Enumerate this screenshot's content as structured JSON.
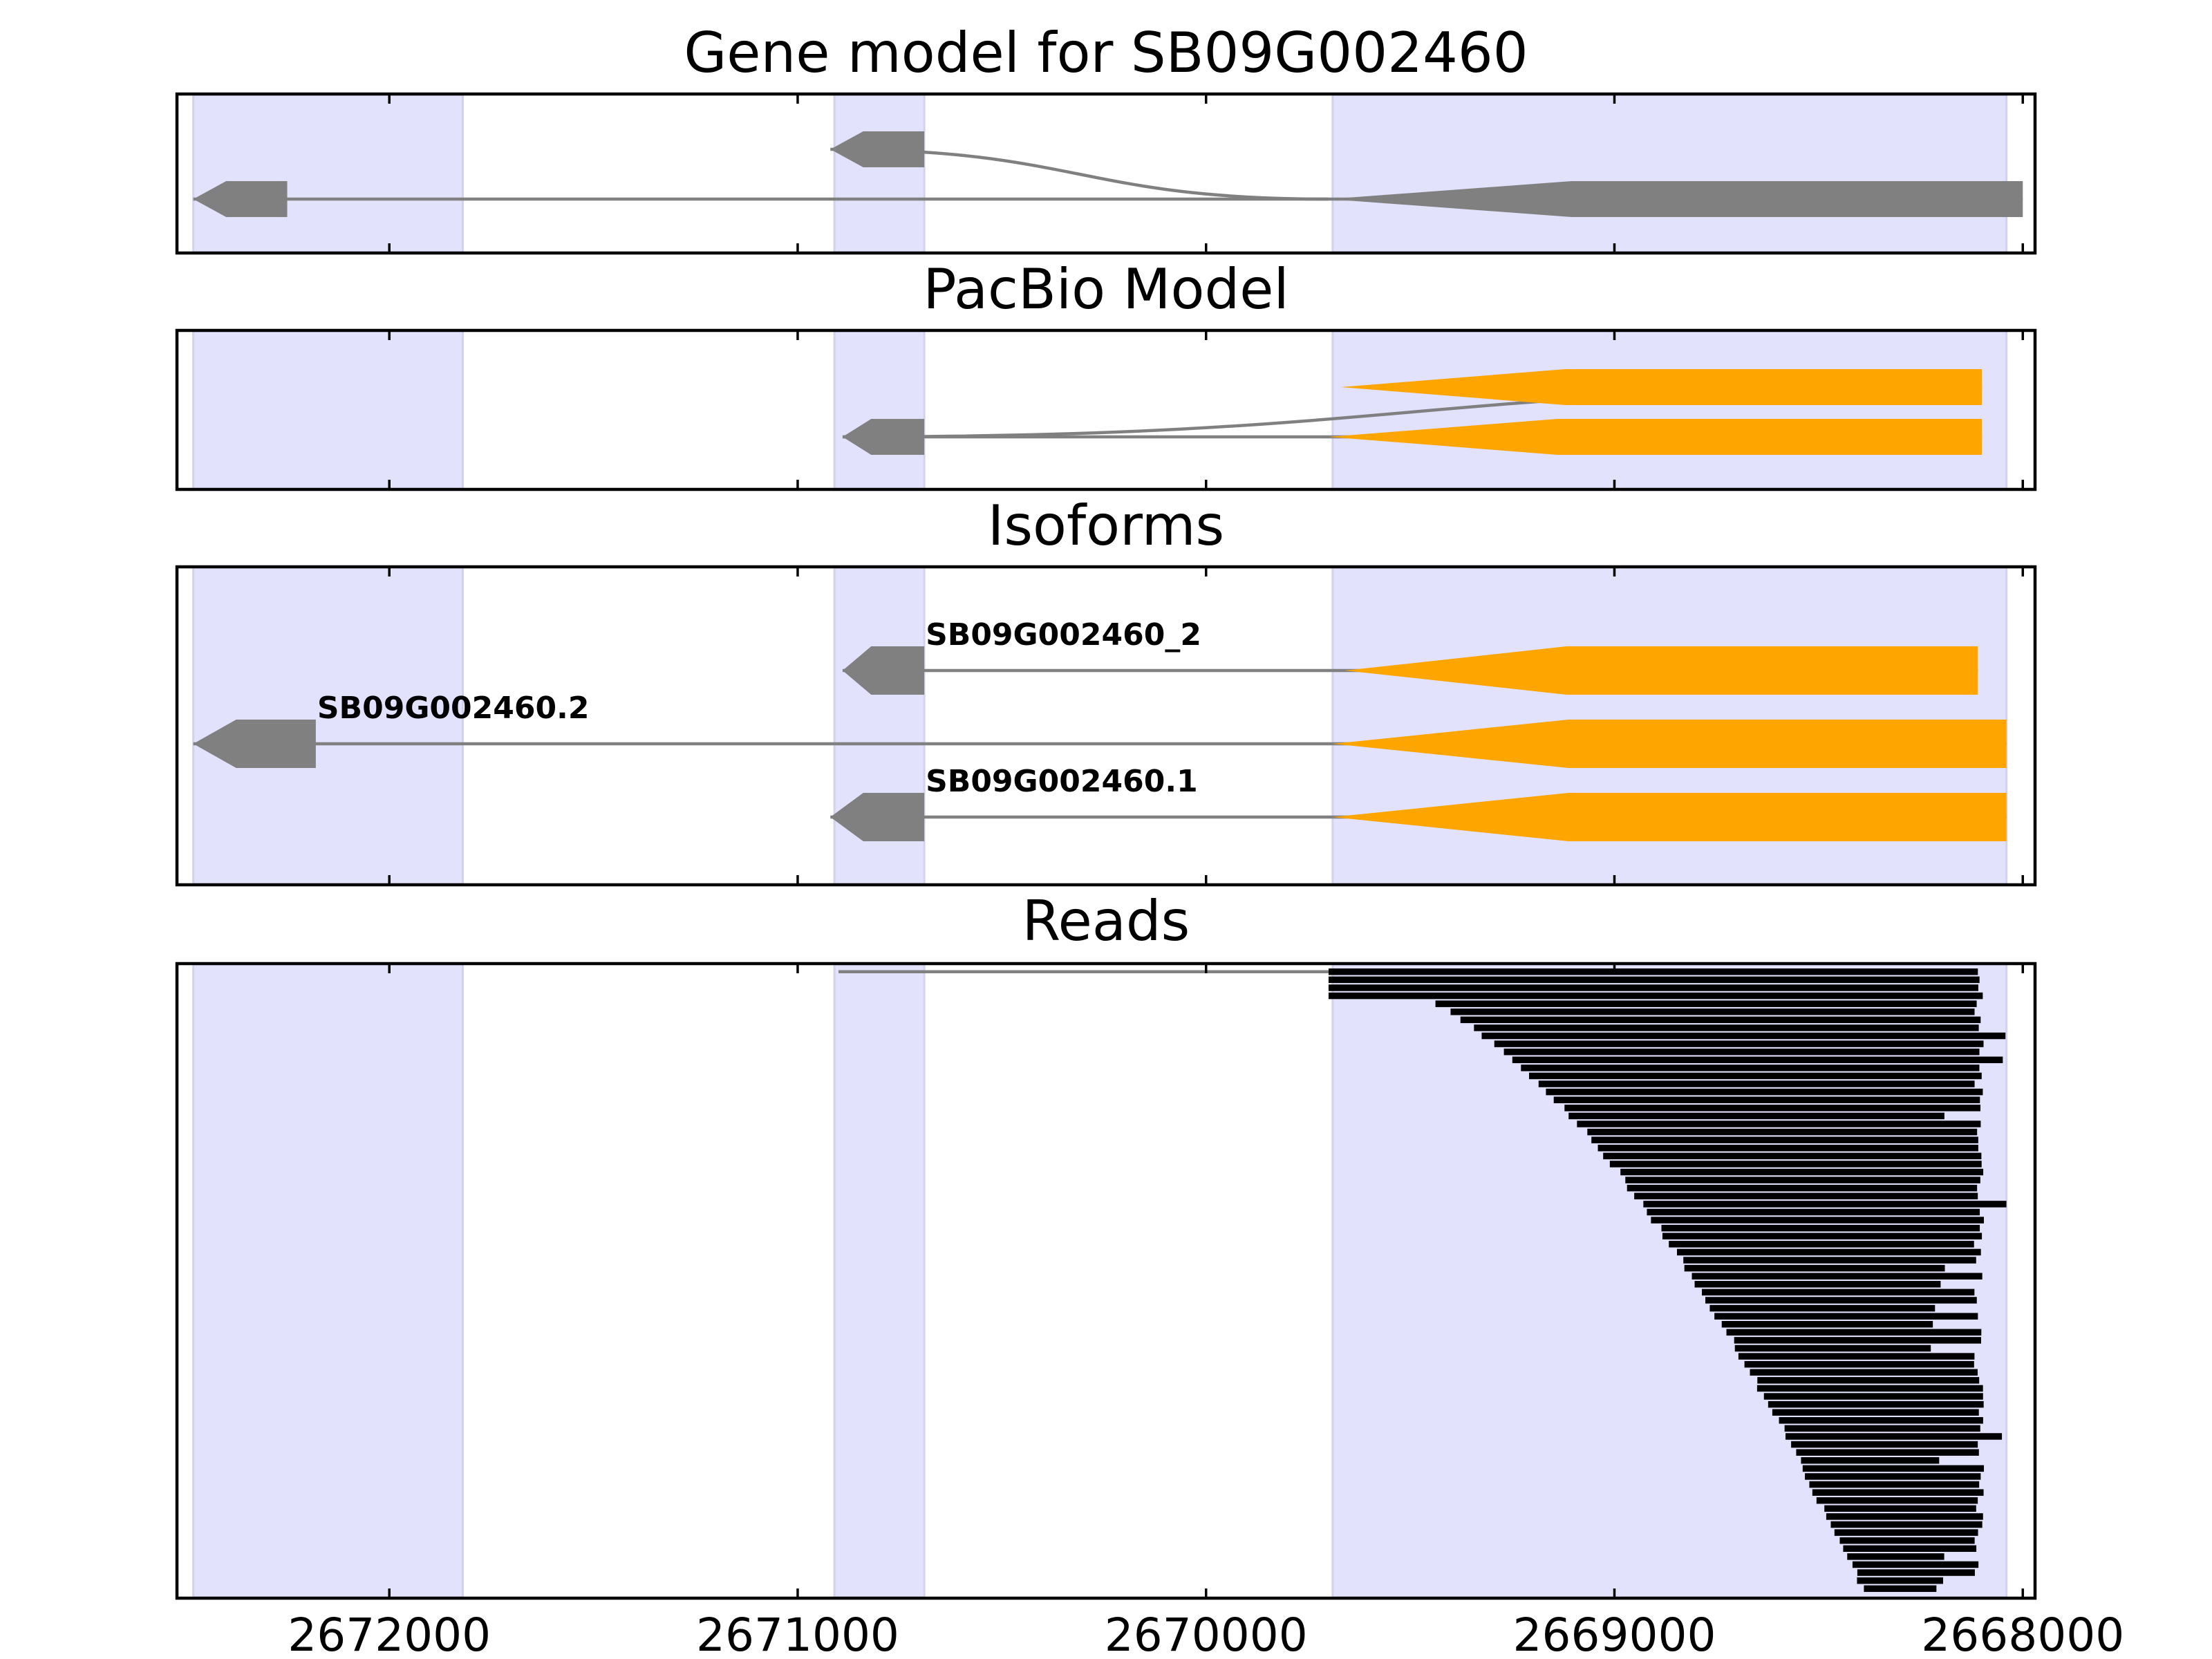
{
  "figure": {
    "x_axis": {
      "reversed": true,
      "min": 2667970,
      "max": 2672520,
      "ticks": [
        2672000,
        2671000,
        2670000,
        2669000,
        2668000
      ],
      "tick_labels": [
        "2672000",
        "2671000",
        "2670000",
        "2669000",
        "2668000"
      ]
    },
    "highlight_regions": [
      [
        2671820,
        2672480
      ],
      [
        2670690,
        2670910
      ],
      [
        2668040,
        2669690
      ]
    ],
    "colors": {
      "highlight": "#e2e2fd",
      "utr": "#808080",
      "cds": "#ffa500",
      "read": "#000000",
      "intron": "#808080"
    }
  },
  "panels": {
    "gene_model": {
      "title": "Gene model for SB09G002460",
      "features": [
        {
          "row": 1,
          "exons": [
            [
              2672250,
              2672480,
              "utr"
            ],
            [
              2668000,
              2669700,
              "utr"
            ]
          ]
        },
        {
          "row": 0,
          "exons": [
            [
              2670690,
              2670920,
              "utr"
            ]
          ],
          "joins_to": [
            2669700,
            1
          ]
        }
      ]
    },
    "pacbio": {
      "title": "PacBio Model",
      "features": [
        {
          "row": 0,
          "exons": [
            [
              2668100,
              2669670,
              "cds"
            ]
          ],
          "joins_from": [
            2670690,
            1
          ]
        },
        {
          "row": 1,
          "exons": [
            [
              2670690,
              2670890,
              "utr"
            ],
            [
              2668100,
              2669700,
              "cds"
            ]
          ]
        }
      ]
    },
    "isoforms": {
      "title": "Isoforms",
      "isoforms": [
        {
          "label": "SB09G002460_2",
          "exons": [
            [
              2670690,
              2670890,
              "utr"
            ],
            [
              2668110,
              2669660,
              "cds"
            ]
          ]
        },
        {
          "label": "SB09G002460.2",
          "exons": [
            [
              2672180,
              2672480,
              "utr"
            ],
            [
              2668040,
              2669690,
              "cds"
            ]
          ]
        },
        {
          "label": "SB09G002460.1",
          "exons": [
            [
              2670690,
              2670920,
              "utr"
            ],
            [
              2668040,
              2669690,
              "cds"
            ]
          ]
        }
      ]
    },
    "reads": {
      "title": "Reads",
      "read_count": 78,
      "spliced_read": {
        "exon1": [
          2670690,
          2670900
        ],
        "exon2_start": 2669700,
        "exon2_end": 2668110
      },
      "read_start_range": [
        2669700,
        2668400
      ],
      "read_end_range": [
        2668040,
        2668200
      ]
    }
  }
}
